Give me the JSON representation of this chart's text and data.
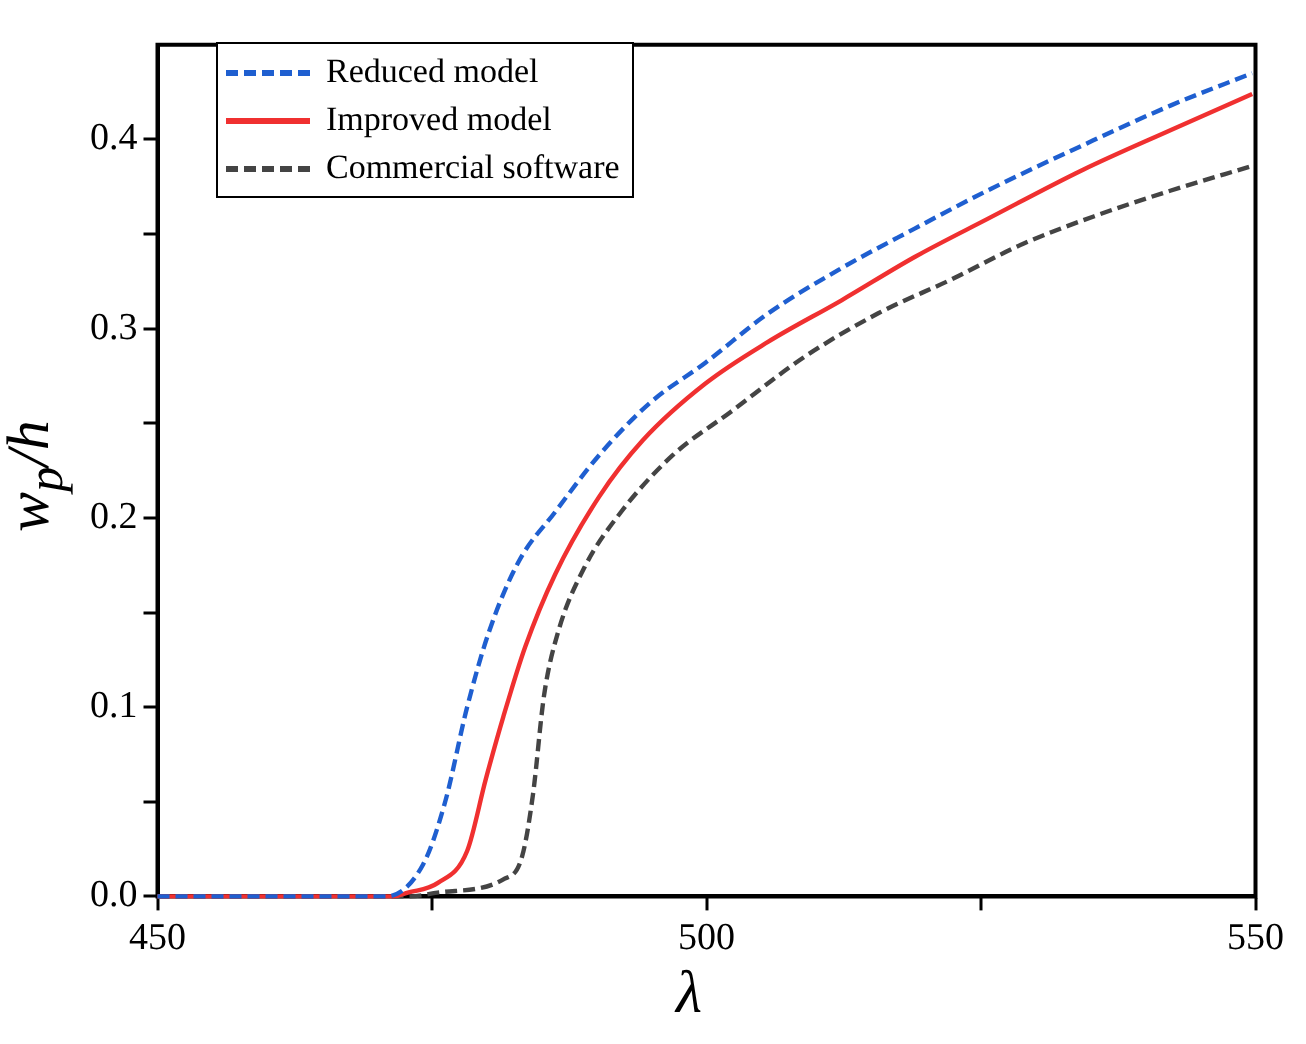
{
  "chart_data": {
    "type": "line",
    "xlabel": "λ",
    "ylabel": "w$_{p}$/h",
    "xlim": [
      450,
      550
    ],
    "xticks": [
      450,
      {
        "value": 475,
        "label": null
      },
      500,
      {
        "value": 525,
        "label": null
      },
      550
    ],
    "ylim": [
      0,
      0.45
    ],
    "yticks": [
      {
        "value": 0,
        "label": "0.0"
      },
      {
        "value": 0.05,
        "label": null
      },
      {
        "value": 0.1,
        "label": "0.1"
      },
      {
        "value": 0.15,
        "label": null
      },
      {
        "value": 0.2,
        "label": "0.2"
      },
      {
        "value": 0.25,
        "label": null
      },
      {
        "value": 0.3,
        "label": "0.3"
      },
      {
        "value": 0.35,
        "label": null
      },
      {
        "value": 0.4,
        "label": "0.4"
      }
    ],
    "grid": false,
    "legend": "top left",
    "marker": "none",
    "series": [
      {
        "name": "Reduced model",
        "color": "#1f5fd0",
        "line_style": "dashed",
        "x": [
          450,
          470.8,
          474.2,
          476.2,
          478.2,
          480.2,
          482.9,
          486.2,
          490.2,
          494.9,
          499.9,
          505.6,
          512.3,
          519.0,
          525.6,
          534.3,
          542.3,
          549.7
        ],
        "values": [
          0,
          0,
          0.017,
          0.05,
          0.1,
          0.14,
          0.177,
          0.203,
          0.233,
          0.261,
          0.282,
          0.308,
          0.332,
          0.353,
          0.373,
          0.397,
          0.418,
          0.435
        ]
      },
      {
        "name": "Improved model",
        "color": "#f03030",
        "line_style": "solid",
        "x": [
          450,
          471.5,
          472.8,
          475.5,
          478.2,
          479.9,
          481.5,
          483.5,
          486.2,
          490.2,
          494.2,
          499.9,
          505.6,
          512.3,
          519.0,
          525.6,
          534.3,
          542.3,
          549.7
        ],
        "values": [
          0,
          0,
          0.002,
          0.007,
          0.024,
          0.062,
          0.095,
          0.132,
          0.17,
          0.211,
          0.241,
          0.271,
          0.293,
          0.315,
          0.338,
          0.358,
          0.384,
          0.405,
          0.424
        ]
      },
      {
        "name": "Commercial software",
        "color": "#444444",
        "line_style": "dashed",
        "x": [
          450,
          473,
          475.5,
          481.5,
          483.2,
          484.2,
          485.2,
          486.5,
          488.9,
          492.2,
          496.9,
          502.2,
          508.9,
          515.6,
          522.3,
          528.9,
          535.6,
          542.3,
          549.7
        ],
        "values": [
          0,
          0,
          0.002,
          0.009,
          0.021,
          0.054,
          0.106,
          0.14,
          0.174,
          0.203,
          0.233,
          0.256,
          0.285,
          0.308,
          0.326,
          0.345,
          0.36,
          0.373,
          0.386
        ]
      }
    ]
  }
}
